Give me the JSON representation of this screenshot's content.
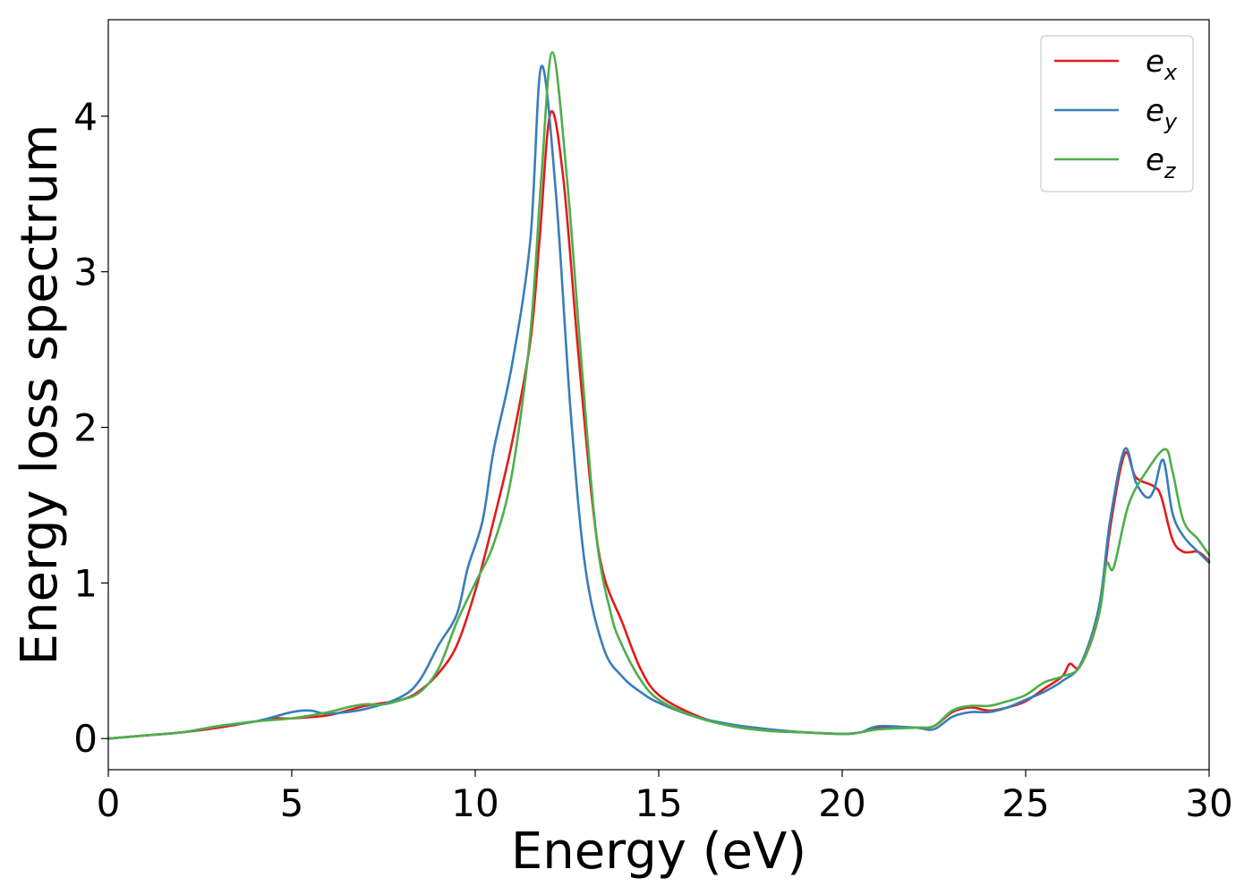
{
  "chart_data": {
    "type": "line",
    "title": "",
    "xlabel": "Energy (eV)",
    "ylabel": "Energy loss spectrum",
    "xlim": [
      0,
      30
    ],
    "ylim": [
      -0.2,
      4.62
    ],
    "xticks": [
      0,
      5,
      10,
      15,
      20,
      25,
      30
    ],
    "yticks": [
      0,
      1,
      2,
      3,
      4
    ],
    "grid": false,
    "legend_position": "top-right",
    "series": [
      {
        "name": "e_x",
        "legend_base": "e",
        "legend_sub": "x",
        "color": "#e41a1c",
        "points": [
          [
            0,
            0.0
          ],
          [
            1,
            0.02
          ],
          [
            2,
            0.04
          ],
          [
            3,
            0.07
          ],
          [
            4,
            0.11
          ],
          [
            4.5,
            0.13
          ],
          [
            5,
            0.13
          ],
          [
            6,
            0.15
          ],
          [
            7,
            0.21
          ],
          [
            8,
            0.25
          ],
          [
            8.5,
            0.31
          ],
          [
            9,
            0.42
          ],
          [
            9.5,
            0.6
          ],
          [
            10,
            0.95
          ],
          [
            10.5,
            1.4
          ],
          [
            11,
            1.9
          ],
          [
            11.5,
            2.55
          ],
          [
            11.75,
            3.2
          ],
          [
            12.05,
            4.02
          ],
          [
            12.4,
            3.6
          ],
          [
            12.8,
            2.5
          ],
          [
            13.2,
            1.5
          ],
          [
            13.5,
            1.05
          ],
          [
            14,
            0.75
          ],
          [
            14.5,
            0.45
          ],
          [
            15,
            0.28
          ],
          [
            16,
            0.15
          ],
          [
            17,
            0.08
          ],
          [
            18,
            0.05
          ],
          [
            19,
            0.04
          ],
          [
            20,
            0.03
          ],
          [
            20.5,
            0.04
          ],
          [
            21,
            0.07
          ],
          [
            22,
            0.07
          ],
          [
            22.5,
            0.08
          ],
          [
            23,
            0.17
          ],
          [
            23.5,
            0.2
          ],
          [
            24,
            0.18
          ],
          [
            24.5,
            0.2
          ],
          [
            25,
            0.24
          ],
          [
            25.5,
            0.32
          ],
          [
            26,
            0.4
          ],
          [
            26.2,
            0.48
          ],
          [
            26.5,
            0.47
          ],
          [
            27,
            0.8
          ],
          [
            27.3,
            1.35
          ],
          [
            27.7,
            1.83
          ],
          [
            28,
            1.68
          ],
          [
            28.5,
            1.62
          ],
          [
            28.7,
            1.55
          ],
          [
            29,
            1.28
          ],
          [
            29.3,
            1.2
          ],
          [
            29.7,
            1.2
          ],
          [
            30,
            1.14
          ]
        ]
      },
      {
        "name": "e_y",
        "legend_base": "e",
        "legend_sub": "y",
        "color": "#377eb8",
        "points": [
          [
            0,
            0.0
          ],
          [
            1,
            0.02
          ],
          [
            2,
            0.04
          ],
          [
            3,
            0.08
          ],
          [
            4,
            0.11
          ],
          [
            5,
            0.17
          ],
          [
            5.5,
            0.18
          ],
          [
            6,
            0.16
          ],
          [
            7,
            0.19
          ],
          [
            8,
            0.27
          ],
          [
            8.5,
            0.38
          ],
          [
            9,
            0.6
          ],
          [
            9.5,
            0.8
          ],
          [
            9.8,
            1.1
          ],
          [
            10.2,
            1.4
          ],
          [
            10.5,
            1.85
          ],
          [
            11,
            2.4
          ],
          [
            11.5,
            3.2
          ],
          [
            11.8,
            4.32
          ],
          [
            12.2,
            3.5
          ],
          [
            12.6,
            2.1
          ],
          [
            13,
            1.1
          ],
          [
            13.5,
            0.58
          ],
          [
            14,
            0.4
          ],
          [
            14.5,
            0.3
          ],
          [
            15,
            0.23
          ],
          [
            16,
            0.14
          ],
          [
            17,
            0.09
          ],
          [
            18,
            0.06
          ],
          [
            19,
            0.04
          ],
          [
            20,
            0.03
          ],
          [
            20.5,
            0.04
          ],
          [
            21,
            0.08
          ],
          [
            22,
            0.07
          ],
          [
            22.5,
            0.06
          ],
          [
            23,
            0.14
          ],
          [
            23.5,
            0.17
          ],
          [
            24,
            0.17
          ],
          [
            24.5,
            0.2
          ],
          [
            25,
            0.25
          ],
          [
            25.5,
            0.3
          ],
          [
            26,
            0.37
          ],
          [
            26.5,
            0.48
          ],
          [
            27,
            0.85
          ],
          [
            27.3,
            1.4
          ],
          [
            27.7,
            1.86
          ],
          [
            28,
            1.65
          ],
          [
            28.3,
            1.55
          ],
          [
            28.5,
            1.6
          ],
          [
            28.75,
            1.79
          ],
          [
            29,
            1.45
          ],
          [
            29.3,
            1.3
          ],
          [
            29.7,
            1.2
          ],
          [
            30,
            1.13
          ]
        ]
      },
      {
        "name": "e_z",
        "legend_base": "e",
        "legend_sub": "z",
        "color": "#4daf4a",
        "points": [
          [
            0,
            0.0
          ],
          [
            1,
            0.02
          ],
          [
            2,
            0.04
          ],
          [
            3,
            0.08
          ],
          [
            4,
            0.11
          ],
          [
            5,
            0.13
          ],
          [
            6,
            0.17
          ],
          [
            6.5,
            0.2
          ],
          [
            7,
            0.22
          ],
          [
            7.5,
            0.22
          ],
          [
            8,
            0.25
          ],
          [
            8.5,
            0.3
          ],
          [
            9,
            0.45
          ],
          [
            9.5,
            0.75
          ],
          [
            10,
            1.0
          ],
          [
            10.5,
            1.25
          ],
          [
            11,
            1.7
          ],
          [
            11.5,
            2.6
          ],
          [
            11.8,
            3.6
          ],
          [
            12.1,
            4.41
          ],
          [
            12.5,
            3.6
          ],
          [
            12.9,
            2.4
          ],
          [
            13.3,
            1.3
          ],
          [
            13.7,
            0.8
          ],
          [
            14,
            0.6
          ],
          [
            14.5,
            0.38
          ],
          [
            15,
            0.25
          ],
          [
            16,
            0.14
          ],
          [
            17,
            0.08
          ],
          [
            18,
            0.05
          ],
          [
            19,
            0.04
          ],
          [
            20,
            0.03
          ],
          [
            20.5,
            0.04
          ],
          [
            21,
            0.06
          ],
          [
            22,
            0.07
          ],
          [
            22.5,
            0.08
          ],
          [
            23,
            0.18
          ],
          [
            23.5,
            0.21
          ],
          [
            24,
            0.21
          ],
          [
            24.5,
            0.24
          ],
          [
            25,
            0.28
          ],
          [
            25.5,
            0.36
          ],
          [
            26,
            0.4
          ],
          [
            26.5,
            0.47
          ],
          [
            27,
            0.8
          ],
          [
            27.2,
            1.12
          ],
          [
            27.4,
            1.1
          ],
          [
            27.8,
            1.5
          ],
          [
            28.3,
            1.72
          ],
          [
            28.8,
            1.86
          ],
          [
            29,
            1.72
          ],
          [
            29.3,
            1.4
          ],
          [
            29.7,
            1.28
          ],
          [
            30,
            1.18
          ]
        ]
      }
    ]
  }
}
